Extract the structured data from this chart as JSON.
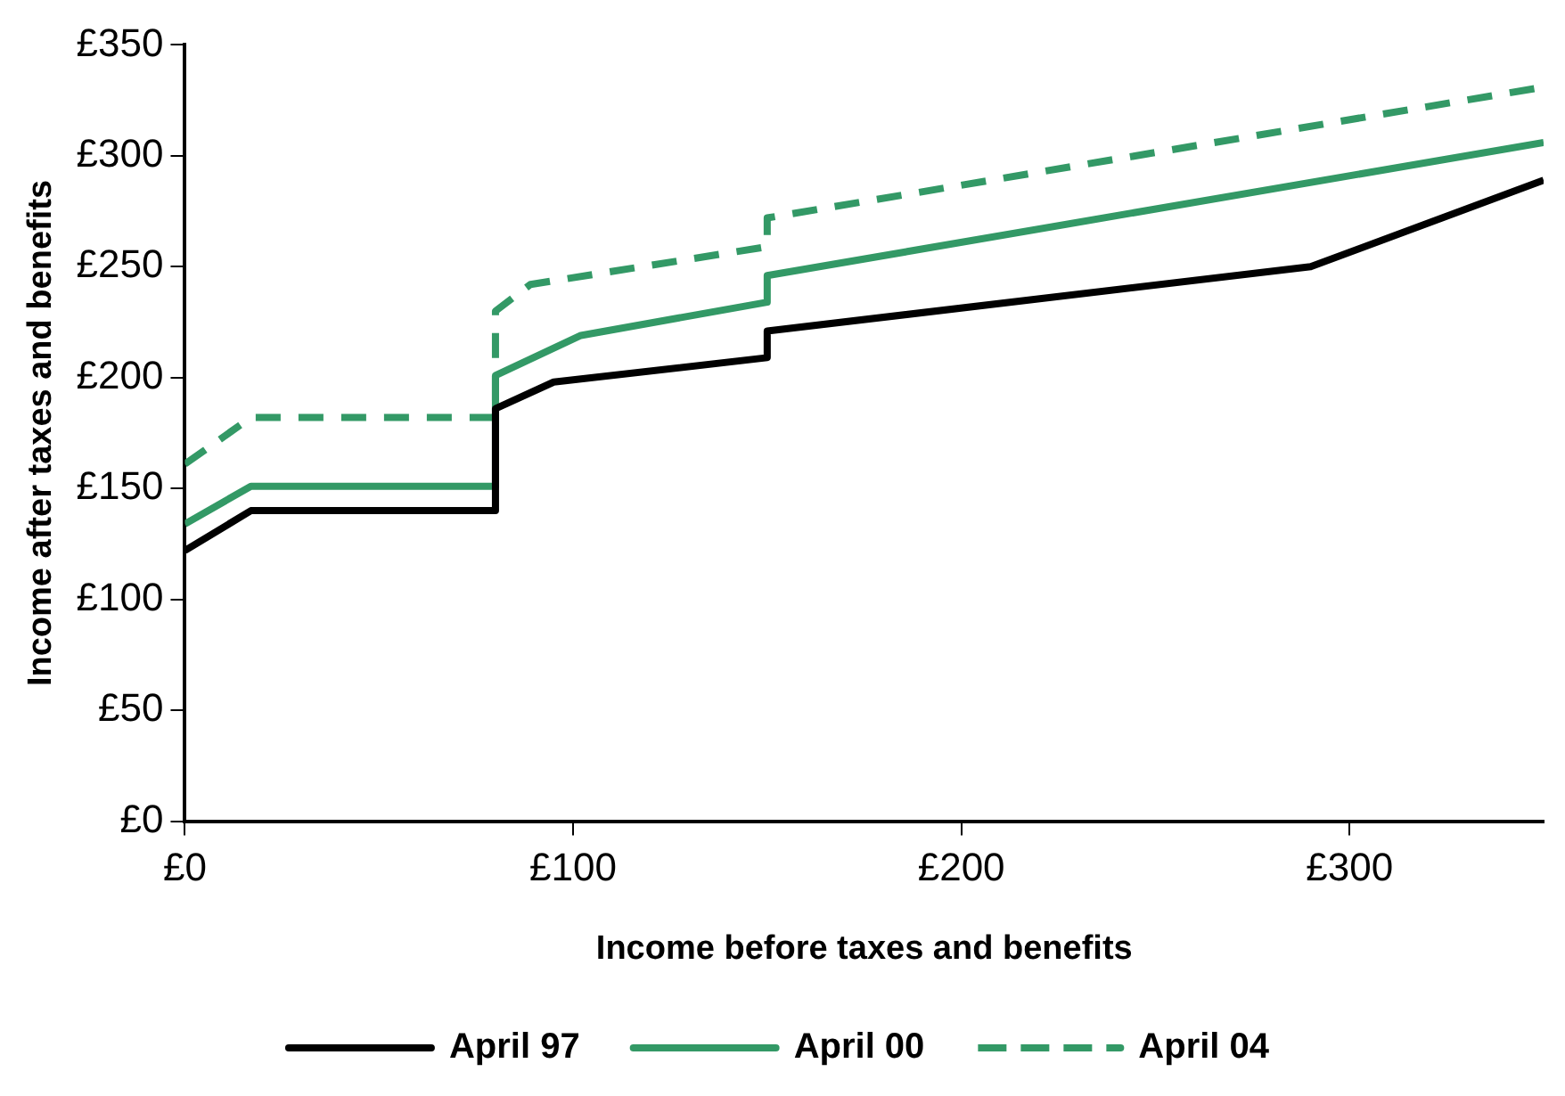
{
  "chart_data": {
    "type": "line",
    "xlabel": "Income before taxes and benefits",
    "ylabel": "Income after taxes and benefits",
    "xlim": [
      0,
      350
    ],
    "ylim": [
      0,
      350
    ],
    "xticks": [
      {
        "value": 0,
        "label": "£0"
      },
      {
        "value": 100,
        "label": "£100"
      },
      {
        "value": 200,
        "label": "£200"
      },
      {
        "value": 300,
        "label": "£300"
      }
    ],
    "yticks": [
      {
        "value": 0,
        "label": "£0"
      },
      {
        "value": 50,
        "label": "£50"
      },
      {
        "value": 100,
        "label": "£100"
      },
      {
        "value": 150,
        "label": "£150"
      },
      {
        "value": 200,
        "label": "£200"
      },
      {
        "value": 250,
        "label": "£250"
      },
      {
        "value": 300,
        "label": "£300"
      },
      {
        "value": 350,
        "label": "£350"
      }
    ],
    "grid": false,
    "legend": "bottom",
    "marker": "none",
    "series": [
      {
        "name": "April 97",
        "color": "#000000",
        "line_style": "solid",
        "x": [
          0,
          17,
          80,
          80,
          95,
          150,
          150,
          290,
          350
        ],
        "values": [
          122,
          140,
          140,
          186,
          198,
          209,
          221,
          250,
          289
        ]
      },
      {
        "name": "April 00",
        "color": "#339966",
        "line_style": "solid",
        "x": [
          0,
          17,
          80,
          80,
          102,
          150,
          150,
          350
        ],
        "values": [
          134,
          151,
          151,
          201,
          219,
          234,
          246,
          306
        ]
      },
      {
        "name": "April 04",
        "color": "#339966",
        "line_style": "dashed",
        "x": [
          0,
          17,
          78,
          80,
          80,
          89,
          150,
          150,
          350
        ],
        "values": [
          161,
          182,
          182,
          182,
          230,
          242,
          259,
          272,
          331
        ]
      }
    ]
  }
}
